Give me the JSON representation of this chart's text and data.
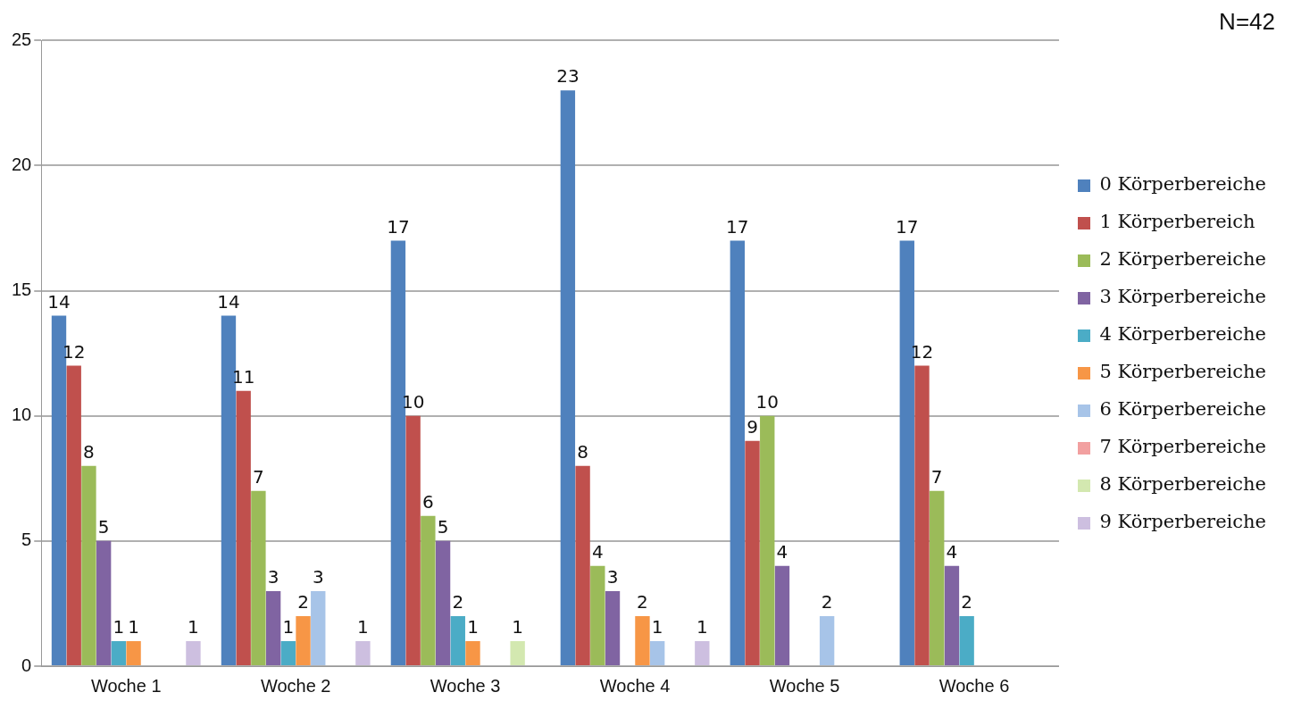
{
  "chart_data": {
    "type": "bar",
    "title": "N=42",
    "categories": [
      "Woche 1",
      "Woche 2",
      "Woche 3",
      "Woche 4",
      "Woche 5",
      "Woche 6"
    ],
    "series": [
      {
        "name": "0 Körperbereiche",
        "color": "#4f81bd",
        "values": [
          14,
          14,
          17,
          23,
          17,
          17
        ]
      },
      {
        "name": "1 Körperbereich",
        "color": "#c0504d",
        "values": [
          12,
          11,
          10,
          8,
          9,
          12
        ]
      },
      {
        "name": "2 Körperbereiche",
        "color": "#9bbb59",
        "values": [
          8,
          7,
          6,
          4,
          10,
          7
        ]
      },
      {
        "name": "3 Körperbereiche",
        "color": "#8064a2",
        "values": [
          5,
          3,
          5,
          3,
          4,
          4
        ]
      },
      {
        "name": "4 Körperbereiche",
        "color": "#4bacc6",
        "values": [
          1,
          1,
          2,
          null,
          null,
          2
        ]
      },
      {
        "name": "5 Körperbereiche",
        "color": "#f79646",
        "values": [
          1,
          2,
          1,
          2,
          null,
          null
        ]
      },
      {
        "name": "6 Körperbereiche",
        "color": "#a7c4e8",
        "values": [
          null,
          3,
          null,
          1,
          2,
          null
        ]
      },
      {
        "name": "7 Körperbereiche",
        "color": "#f2a0a0",
        "values": [
          null,
          null,
          null,
          null,
          null,
          null
        ]
      },
      {
        "name": "8 Körperbereiche",
        "color": "#d3e8b0",
        "values": [
          null,
          null,
          1,
          null,
          null,
          null
        ]
      },
      {
        "name": "9 Körperbereiche",
        "color": "#cdbfe0",
        "values": [
          1,
          1,
          null,
          1,
          null,
          null
        ]
      }
    ],
    "ylim": [
      0,
      25
    ],
    "yticks": [
      0,
      5,
      10,
      15,
      20,
      25
    ],
    "grid": "y",
    "legend": "right",
    "data_labels": true
  }
}
